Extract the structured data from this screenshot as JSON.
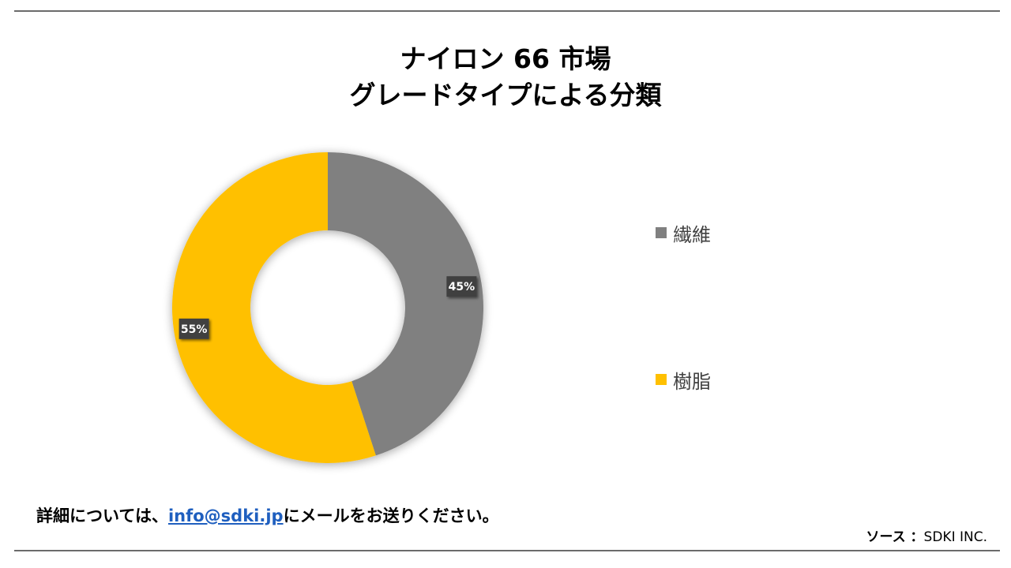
{
  "title_line1": "ナイロン 66 市場",
  "title_line2": "グレードタイプによる分類",
  "chart_data": {
    "type": "donut",
    "categories": [
      "繊維",
      "樹脂"
    ],
    "values": [
      45,
      55
    ],
    "data_labels": [
      "45%",
      "55%"
    ],
    "colors": [
      "#808080",
      "#FFC000"
    ],
    "legend_position": "right"
  },
  "footer": {
    "contact_prefix": "詳細については、",
    "contact_email": "info@sdki.jp",
    "contact_suffix": "にメールをお送りください。",
    "source_label": "ソース ：",
    "source_value": "SDKI INC."
  }
}
